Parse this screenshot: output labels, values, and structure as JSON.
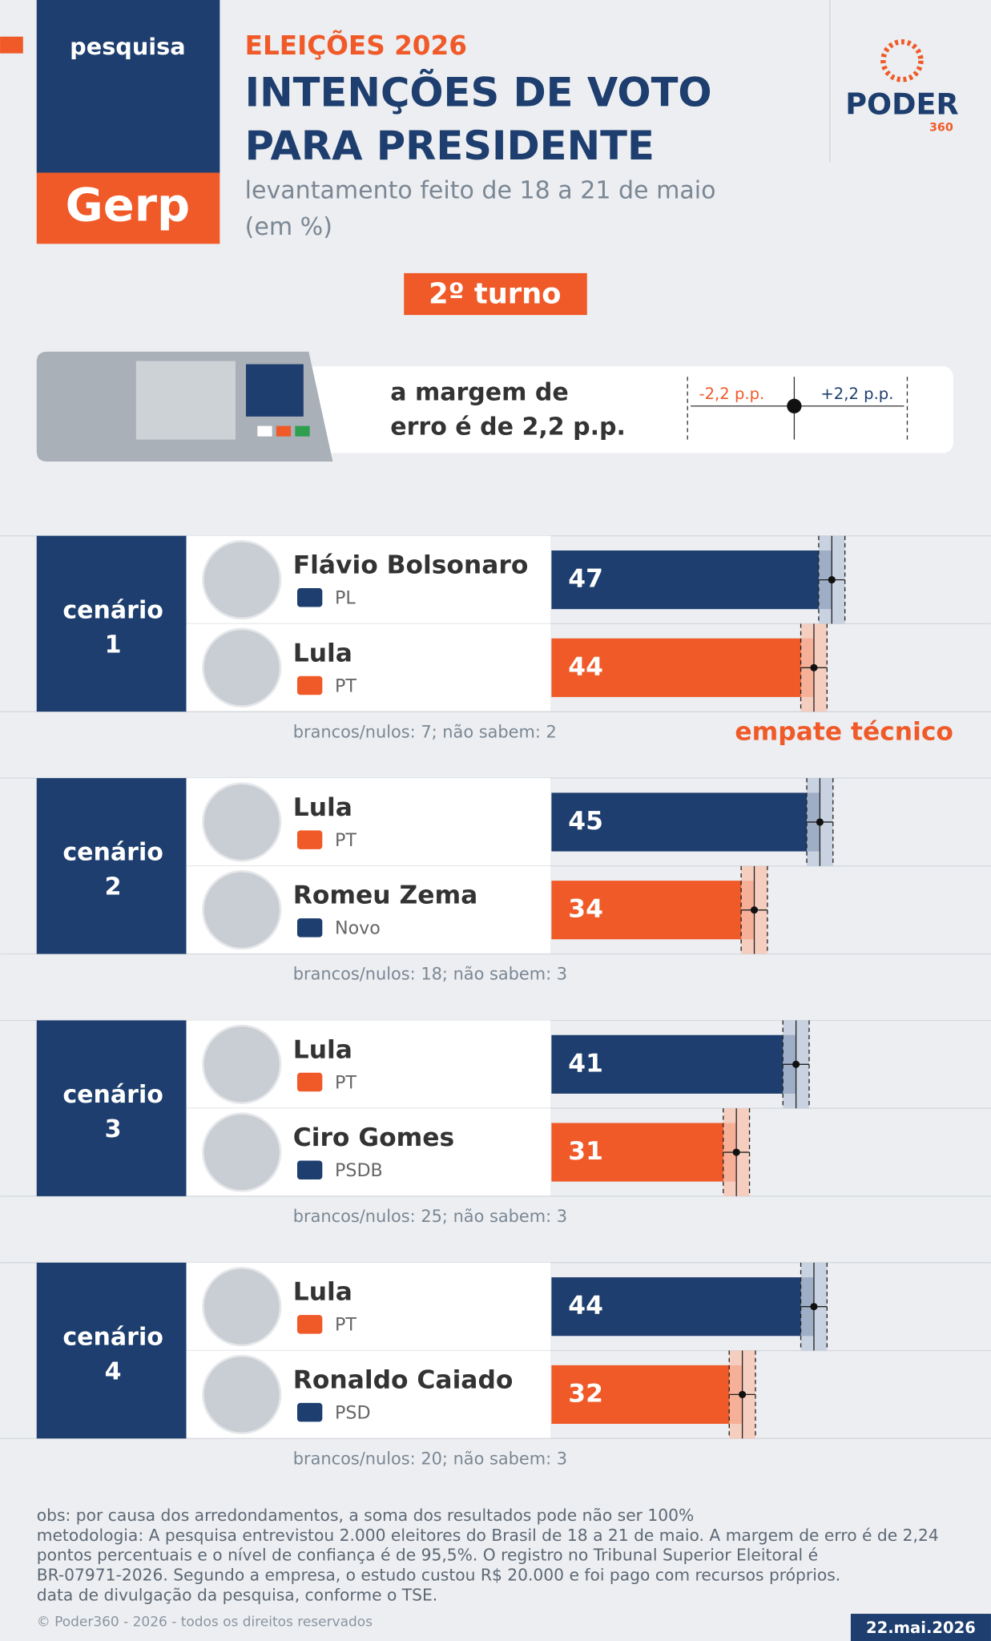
{
  "header": {
    "tag": "pesquisa",
    "brand": "Gerp",
    "kicker": "ELEIÇÕES 2026",
    "title": [
      "INTENÇÕES DE VOTO",
      "PARA PRESIDENTE"
    ],
    "subtitle": [
      "levantamento feito de 18 a 21 de maio",
      "(em %)"
    ],
    "logo": "PODER",
    "logo_sub": "360"
  },
  "round": "2º turno",
  "margin_box": {
    "text": [
      "a margem de",
      "erro é de 2,2 p.p."
    ],
    "minus": "-2,2 p.p.",
    "plus": "+2,2 p.p.",
    "margin": 2.2
  },
  "scenarios": [
    {
      "label": "cenário",
      "number": "1",
      "candidates": [
        {
          "name": "Flávio Bolsonaro",
          "party": "PL",
          "value": 47
        },
        {
          "name": "Lula",
          "party": "PT",
          "value": 44
        }
      ],
      "note": "brancos/nulos: 7; não sabem: 2",
      "annotation": "empate técnico"
    },
    {
      "label": "cenário",
      "number": "2",
      "candidates": [
        {
          "name": "Lula",
          "party": "PT",
          "value": 45
        },
        {
          "name": "Romeu Zema",
          "party": "Novo",
          "value": 34
        }
      ],
      "note": "brancos/nulos: 18; não sabem: 3"
    },
    {
      "label": "cenário",
      "number": "3",
      "candidates": [
        {
          "name": "Lula",
          "party": "PT",
          "value": 41
        },
        {
          "name": "Ciro Gomes",
          "party": "PSDB",
          "value": 31
        }
      ],
      "note": "brancos/nulos: 25; não sabem: 3"
    },
    {
      "label": "cenário",
      "number": "4",
      "candidates": [
        {
          "name": "Lula",
          "party": "PT",
          "value": 44
        },
        {
          "name": "Ronaldo Caiado",
          "party": "PSD",
          "value": 32
        }
      ],
      "note": "brancos/nulos: 20; não sabem: 3"
    }
  ],
  "footer": {
    "notes": [
      "obs: por causa dos arredondamentos, a soma dos resultados pode não ser 100%",
      "metodologia: A pesquisa entrevistou 2.000 eleitores do Brasil de 18 a 21 de maio. A margem de erro é de 2,24",
      "pontos percentuais e o nível de confiança é de 95,5%. O registro no Tribunal Superior Eleitoral é",
      "BR-07971-2026. Segundo a empresa, o estudo custou R$ 20.000 e foi pago com recursos próprios.",
      "data de divulgação da pesquisa, conforme o TSE."
    ],
    "copyright": "© Poder360 - 2026 - todos os direitos reservados",
    "date": "22.mai.2026"
  }
}
